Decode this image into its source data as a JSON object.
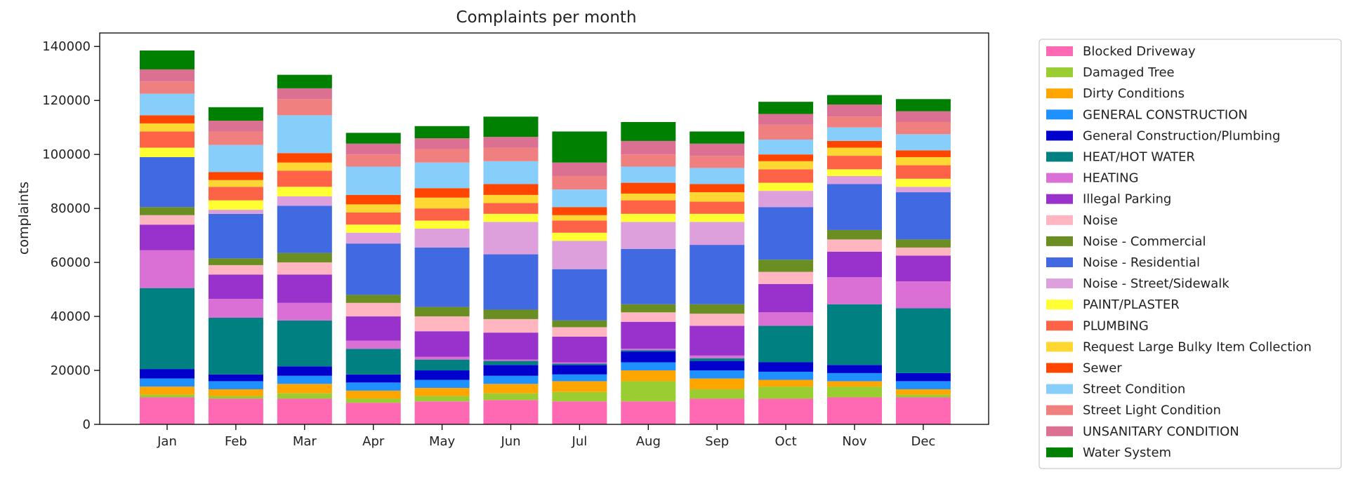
{
  "chart_data": {
    "type": "bar",
    "stacked": true,
    "title": "Complaints per month",
    "xlabel": "",
    "ylabel": "complaints",
    "ylim": [
      0,
      145000
    ],
    "yticks": [
      0,
      20000,
      40000,
      60000,
      80000,
      100000,
      120000,
      140000
    ],
    "grid": false,
    "legend_position": "outside-right",
    "categories": [
      "Jan",
      "Feb",
      "Mar",
      "Apr",
      "May",
      "Jun",
      "Jul",
      "Aug",
      "Sep",
      "Oct",
      "Nov",
      "Dec"
    ],
    "series": [
      {
        "name": "Blocked Driveway",
        "color": "#ff69b4",
        "values": [
          10000,
          9500,
          9500,
          8000,
          8500,
          9000,
          8500,
          8500,
          9500,
          9500,
          10000,
          10000
        ]
      },
      {
        "name": "Damaged Tree",
        "color": "#9acd32",
        "values": [
          1000,
          1000,
          2000,
          1500,
          2000,
          2500,
          3500,
          7500,
          3500,
          4500,
          4000,
          1000
        ]
      },
      {
        "name": "Dirty Conditions",
        "color": "#ffa500",
        "values": [
          3000,
          2500,
          3500,
          3000,
          3000,
          3500,
          4000,
          4000,
          4000,
          2500,
          2000,
          2000
        ]
      },
      {
        "name": "GENERAL CONSTRUCTION",
        "color": "#1e90ff",
        "values": [
          3000,
          3000,
          3000,
          3000,
          3000,
          3000,
          2500,
          3000,
          3000,
          3000,
          3000,
          3000
        ]
      },
      {
        "name": "General Construction/Plumbing",
        "color": "#0000cd",
        "values": [
          3500,
          2500,
          3500,
          3000,
          3500,
          4000,
          3500,
          4000,
          3500,
          3500,
          3000,
          3000
        ]
      },
      {
        "name": "HEAT/HOT WATER",
        "color": "#008080",
        "values": [
          30000,
          21000,
          17000,
          9500,
          4000,
          1500,
          500,
          500,
          1000,
          13500,
          22500,
          24000
        ]
      },
      {
        "name": "HEATING",
        "color": "#da70d6",
        "values": [
          14000,
          7000,
          6500,
          3000,
          1000,
          500,
          500,
          500,
          1000,
          5000,
          10000,
          10000
        ]
      },
      {
        "name": "Illegal Parking",
        "color": "#9932cc",
        "values": [
          9500,
          9000,
          10500,
          9000,
          9500,
          10000,
          9500,
          10000,
          11000,
          10500,
          9500,
          9500
        ]
      },
      {
        "name": "Noise",
        "color": "#ffb6c1",
        "values": [
          3500,
          3500,
          4500,
          5000,
          5500,
          5000,
          3500,
          3500,
          4500,
          4500,
          4500,
          3000
        ]
      },
      {
        "name": "Noise - Commercial",
        "color": "#6b8e23",
        "values": [
          3000,
          2500,
          3500,
          3000,
          3500,
          3500,
          2500,
          3000,
          3500,
          4500,
          3500,
          3000
        ]
      },
      {
        "name": "Noise - Residential",
        "color": "#4169e1",
        "values": [
          18500,
          16500,
          17500,
          19000,
          22000,
          20500,
          19000,
          20500,
          22000,
          19500,
          17000,
          17500
        ]
      },
      {
        "name": "Noise - Street/Sidewalk",
        "color": "#dda0dd",
        "values": [
          0,
          1500,
          3500,
          4000,
          7000,
          12000,
          10500,
          10000,
          8500,
          6000,
          3000,
          2000
        ]
      },
      {
        "name": "PAINT/PLASTER",
        "color": "#ffff33",
        "values": [
          3500,
          3500,
          3500,
          3000,
          3000,
          3000,
          3000,
          3000,
          3000,
          3000,
          2500,
          3000
        ]
      },
      {
        "name": "PLUMBING",
        "color": "#ff6347",
        "values": [
          6000,
          5000,
          6000,
          4500,
          4500,
          4000,
          4500,
          5000,
          4500,
          5000,
          5000,
          5000
        ]
      },
      {
        "name": "Request Large Bulky Item Collection",
        "color": "#ffd733",
        "values": [
          3000,
          2500,
          3000,
          3000,
          4000,
          3000,
          2000,
          2500,
          3500,
          3000,
          3000,
          3000
        ]
      },
      {
        "name": "Sewer",
        "color": "#ff4500",
        "values": [
          3000,
          3000,
          3500,
          3500,
          3500,
          4000,
          3000,
          4000,
          3000,
          2500,
          2500,
          2500
        ]
      },
      {
        "name": "Street Condition",
        "color": "#87cefa",
        "values": [
          8000,
          10000,
          14000,
          10500,
          9500,
          8500,
          6500,
          6000,
          6000,
          5500,
          5000,
          6000
        ]
      },
      {
        "name": "Street Light Condition",
        "color": "#f08080",
        "values": [
          4500,
          5000,
          6000,
          4500,
          5000,
          5000,
          5000,
          4500,
          4500,
          5500,
          4000,
          4500
        ]
      },
      {
        "name": "UNSANITARY CONDITION",
        "color": "#db7093",
        "values": [
          4500,
          4000,
          4000,
          4000,
          4000,
          4000,
          5000,
          5000,
          4500,
          4000,
          4500,
          4000
        ]
      },
      {
        "name": "Water System",
        "color": "#008000",
        "values": [
          7000,
          5000,
          5000,
          4000,
          4500,
          7500,
          11500,
          7000,
          4500,
          4500,
          3500,
          4500
        ]
      }
    ]
  }
}
